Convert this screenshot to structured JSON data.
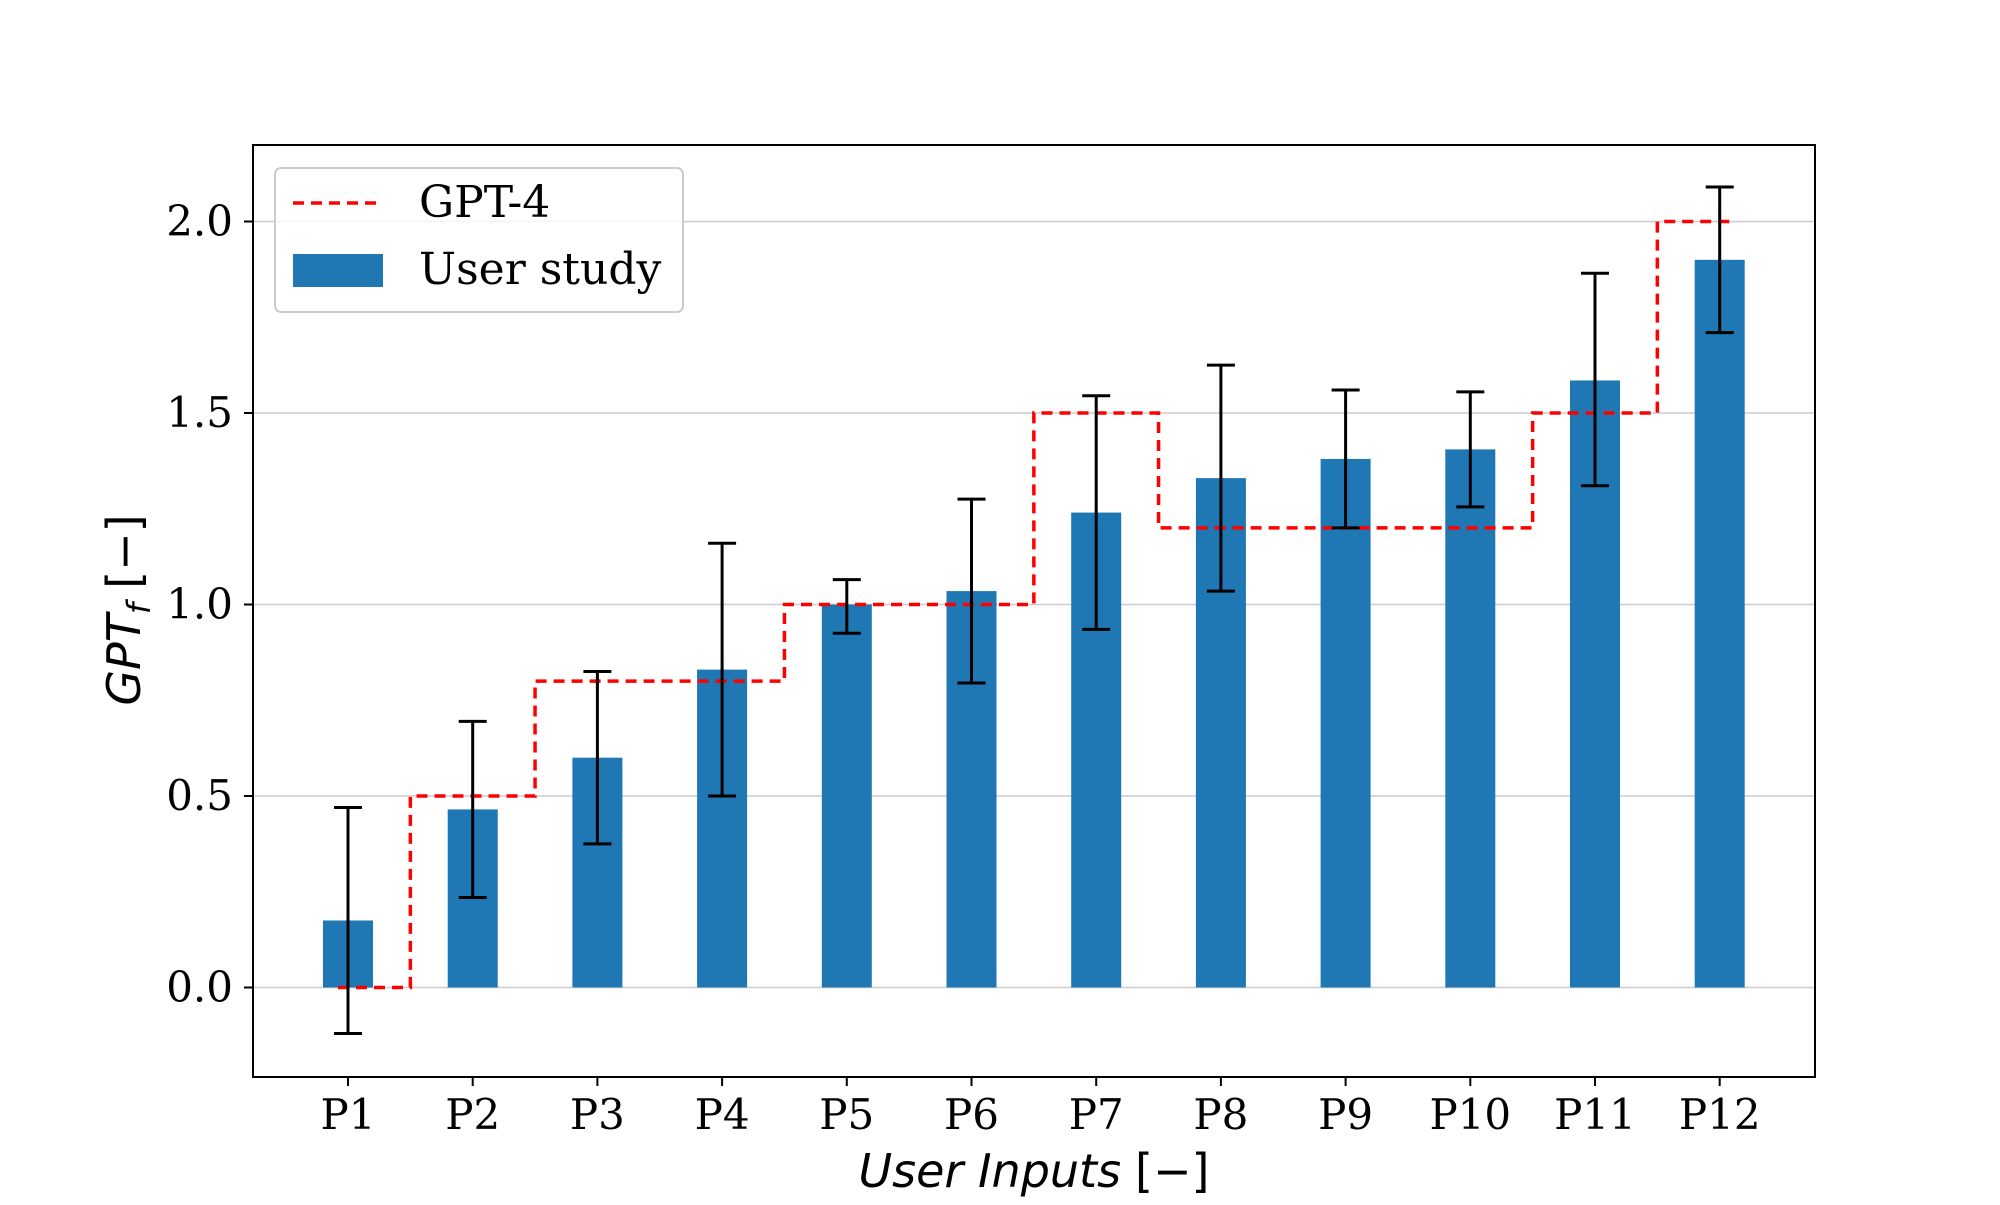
{
  "chart_data": {
    "type": "bar",
    "title": "",
    "categories": [
      "P1",
      "P2",
      "P3",
      "P4",
      "P5",
      "P6",
      "P7",
      "P8",
      "P9",
      "P10",
      "P11",
      "P12"
    ],
    "series": [
      {
        "name": "User study",
        "kind": "bar",
        "color": "#1f77b4",
        "values": [
          0.175,
          0.465,
          0.6,
          0.83,
          1.0,
          1.035,
          1.24,
          1.33,
          1.38,
          1.405,
          1.585,
          1.9
        ],
        "error_low": [
          -0.12,
          0.235,
          0.375,
          0.5,
          0.925,
          0.795,
          0.935,
          1.035,
          1.2,
          1.255,
          1.31,
          1.71
        ],
        "error_high": [
          0.47,
          0.695,
          0.825,
          1.16,
          1.065,
          1.275,
          1.545,
          1.625,
          1.56,
          1.555,
          1.865,
          2.09
        ]
      },
      {
        "name": "GPT-4",
        "kind": "step",
        "color": "#ff0000",
        "values": [
          0.0,
          0.5,
          0.8,
          0.8,
          1.0,
          1.0,
          1.5,
          1.2,
          1.2,
          1.2,
          1.5,
          2.0
        ]
      }
    ],
    "xlabel": {
      "main": "User Inputs",
      "unit": "[−]"
    },
    "ylabel": {
      "main": "GPT",
      "sub": "f",
      "unit": "[−]"
    },
    "ylim": [
      -0.23,
      2.2
    ],
    "yticks": [
      "0.0",
      "0.5",
      "1.0",
      "1.5",
      "2.0"
    ],
    "grid": "y",
    "legend": {
      "position": "top-left",
      "entries": [
        "GPT-4",
        "User study"
      ]
    }
  }
}
